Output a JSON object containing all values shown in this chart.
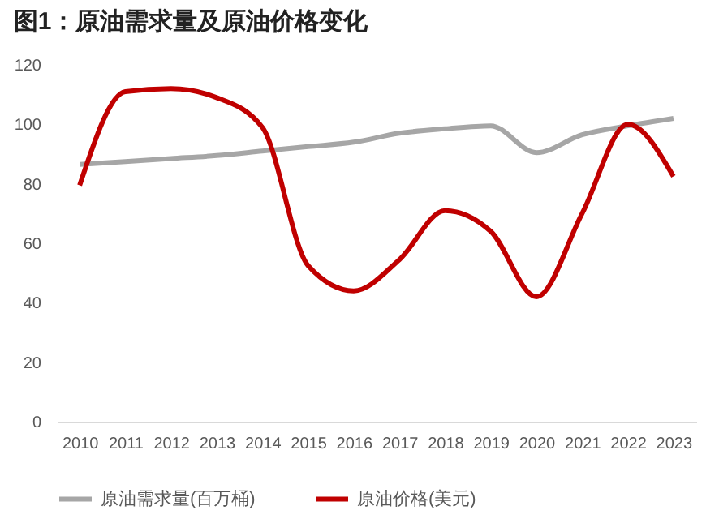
{
  "chart_data": {
    "type": "line",
    "title": "图1：原油需求量及原油价格变化",
    "categories": [
      "2010",
      "2011",
      "2012",
      "2013",
      "2014",
      "2015",
      "2016",
      "2017",
      "2018",
      "2019",
      "2020",
      "2021",
      "2022",
      "2023"
    ],
    "series": [
      {
        "name": "原油需求量(百万桶)",
        "color": "#a6a6a6",
        "values": [
          86.5,
          87.5,
          88.5,
          89.5,
          91,
          92.5,
          94,
          97,
          98.5,
          99.5,
          90.5,
          96.5,
          99.5,
          102
        ]
      },
      {
        "name": "原油价格(美元)",
        "color": "#c00000",
        "values": [
          79.5,
          111,
          112,
          109,
          99,
          52.5,
          44,
          54.5,
          71,
          64,
          42,
          70,
          100,
          82.5
        ]
      }
    ],
    "ylim": [
      0,
      120
    ],
    "yticks": [
      0,
      20,
      40,
      60,
      80,
      100,
      120
    ],
    "grid": false,
    "legend": "bottom",
    "marker": "none",
    "line_style": "solid"
  }
}
